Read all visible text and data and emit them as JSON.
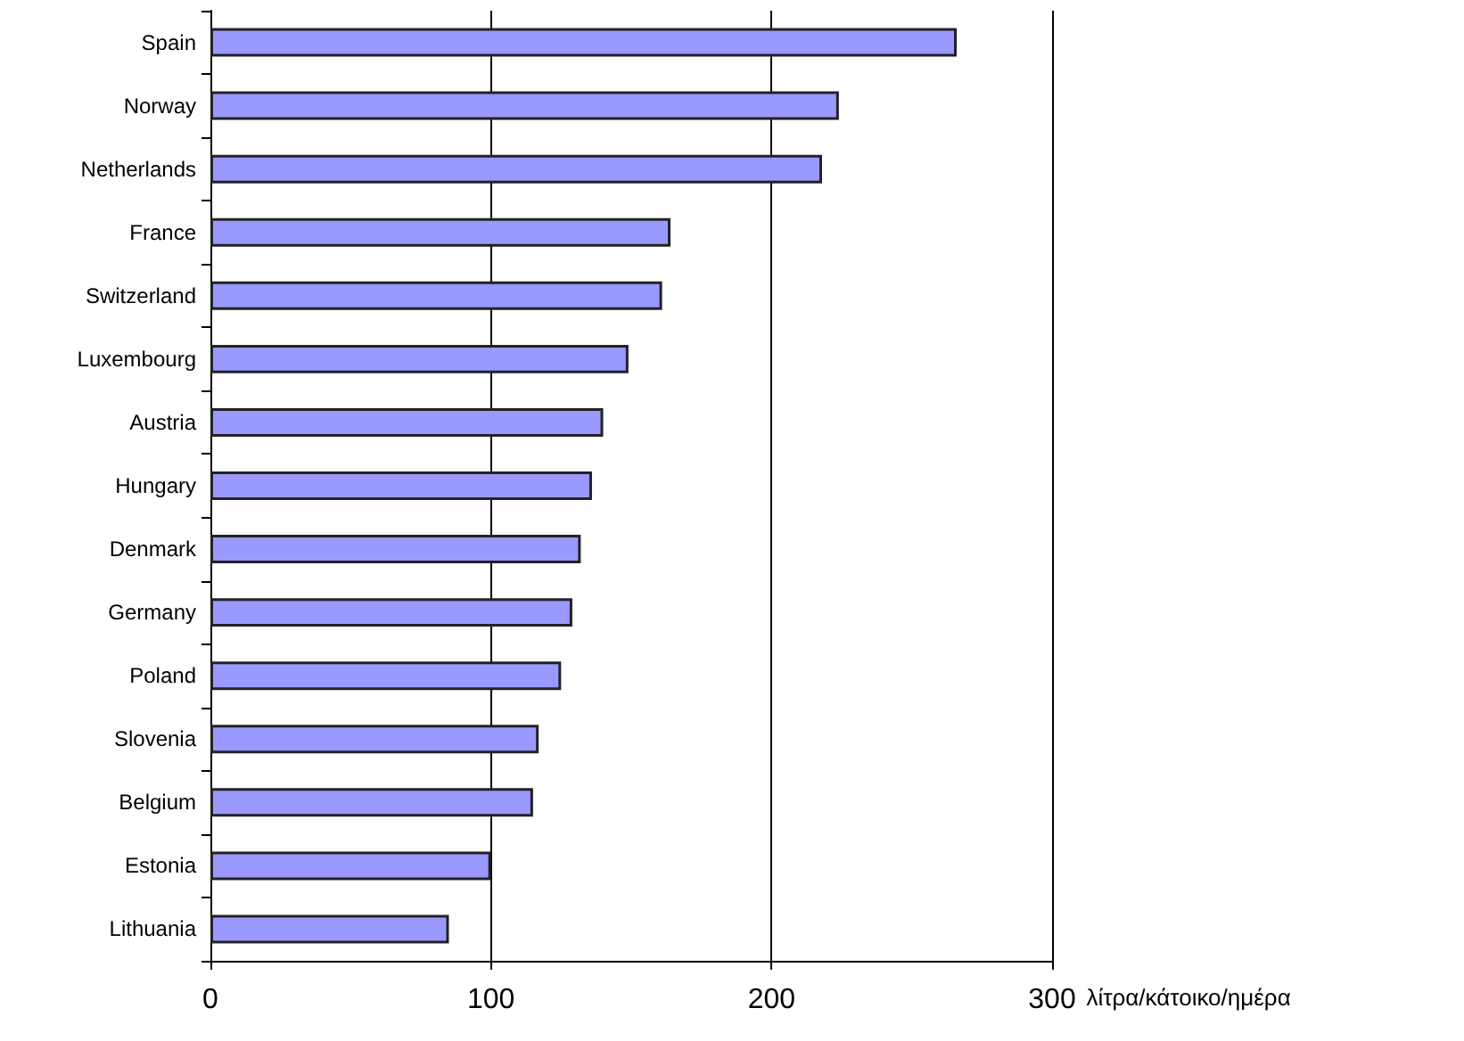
{
  "chart_data": {
    "type": "bar",
    "orientation": "horizontal",
    "xlabel": "λίτρα/κάτοικο/ημέρα",
    "categories": [
      "Spain",
      "Norway",
      "Netherlands",
      "France",
      "Switzerland",
      "Luxembourg",
      "Austria",
      "Hungary",
      "Denmark",
      "Germany",
      "Poland",
      "Slovenia",
      "Belgium",
      "Estonia",
      "Lithuania"
    ],
    "values": [
      266,
      224,
      218,
      164,
      161,
      149,
      140,
      136,
      132,
      129,
      125,
      117,
      115,
      100,
      85
    ],
    "color": "#9999ff",
    "xlim": [
      0,
      300
    ],
    "xticks": [
      0,
      100,
      200,
      300
    ],
    "grid": "x"
  }
}
